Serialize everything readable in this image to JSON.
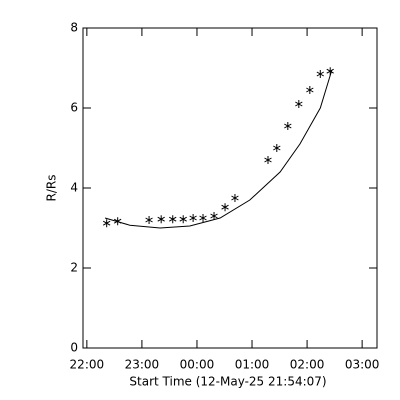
{
  "chart_data": {
    "type": "scatter",
    "x_label": "Start Time (12-May-25 21:54:07)",
    "y_label": "R/Rs",
    "xlim": [
      21.93,
      27.27
    ],
    "ylim": [
      0,
      8
    ],
    "xticks": [
      {
        "value": 22,
        "label": "22:00"
      },
      {
        "value": 23,
        "label": "23:00"
      },
      {
        "value": 24,
        "label": "00:00"
      },
      {
        "value": 25,
        "label": "01:00"
      },
      {
        "value": 26,
        "label": "02:00"
      },
      {
        "value": 27,
        "label": "03:00"
      }
    ],
    "yticks": [
      0,
      2,
      4,
      6,
      8
    ],
    "series": [
      {
        "style": "asterisk",
        "color": "#000000",
        "x": [
          22.36,
          22.56,
          23.13,
          23.35,
          23.56,
          23.75,
          23.93,
          24.11,
          24.31,
          24.51,
          24.69,
          25.29,
          25.45,
          25.65,
          25.85,
          26.05,
          26.24,
          26.42
        ],
        "values": [
          3.12,
          3.17,
          3.2,
          3.22,
          3.22,
          3.22,
          3.25,
          3.25,
          3.3,
          3.52,
          3.75,
          4.7,
          5.0,
          5.55,
          6.1,
          6.45,
          6.85,
          6.92
        ]
      },
      {
        "style": "line",
        "color": "#000000",
        "x": [
          22.33,
          22.78,
          23.33,
          23.87,
          24.42,
          24.96,
          25.51,
          25.87,
          26.24,
          26.45
        ],
        "values": [
          3.25,
          3.07,
          3.0,
          3.05,
          3.25,
          3.7,
          4.4,
          5.1,
          6.0,
          6.95
        ]
      }
    ]
  }
}
